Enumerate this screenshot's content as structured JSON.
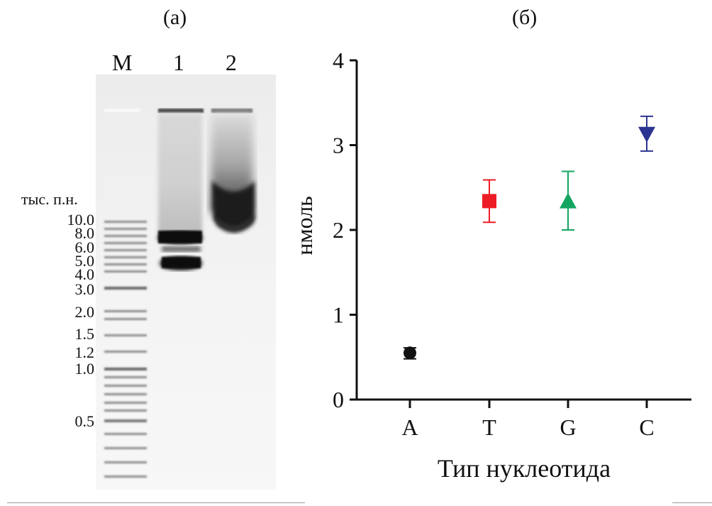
{
  "panels": {
    "a_label": "(а)",
    "b_label": "(б)"
  },
  "gel": {
    "lanes": [
      "M",
      "1",
      "2"
    ],
    "ladder_unit": "тыс. п.н.",
    "ladder_bands": [
      "10.0",
      "8.0",
      "6.0",
      "5.0",
      "4.0",
      "3.0",
      "2.0",
      "1.5",
      "1.2",
      "1.0",
      "0.5"
    ]
  },
  "chart_data": {
    "type": "scatter",
    "title": "",
    "xlabel": "Тип нуклеотида",
    "ylabel": "нмоль",
    "categories": [
      "A",
      "T",
      "G",
      "C"
    ],
    "ylim": [
      0,
      4
    ],
    "yticks": [
      "0",
      "1",
      "2",
      "3",
      "4"
    ],
    "grid": false,
    "legend": "none",
    "points": [
      {
        "category": "A",
        "value": 0.55,
        "err_low": 0.48,
        "err_high": 0.61,
        "marker": "circle",
        "color": "#111111"
      },
      {
        "category": "T",
        "value": 2.34,
        "err_low": 2.09,
        "err_high": 2.59,
        "marker": "square",
        "color": "#ee1c25"
      },
      {
        "category": "G",
        "value": 2.33,
        "err_low": 2.0,
        "err_high": 2.69,
        "marker": "triangle-up",
        "color": "#13a560"
      },
      {
        "category": "C",
        "value": 3.14,
        "err_low": 2.93,
        "err_high": 3.34,
        "marker": "triangle-down",
        "color": "#2b3490"
      }
    ]
  }
}
